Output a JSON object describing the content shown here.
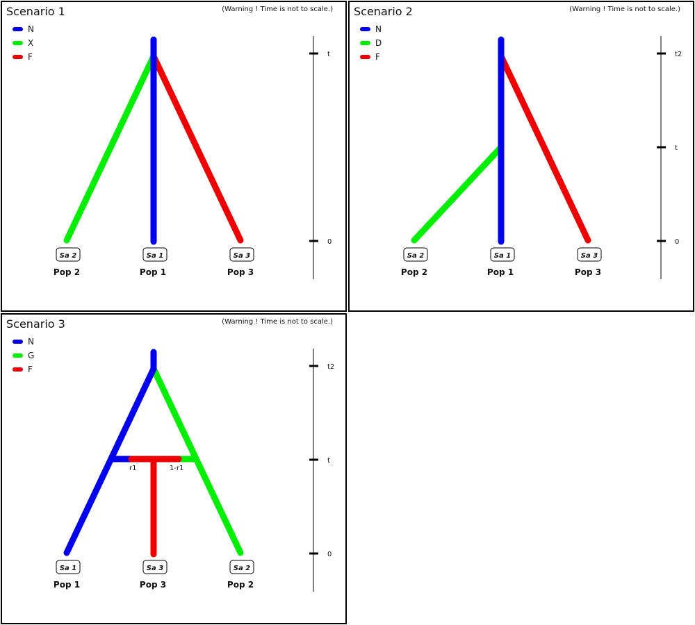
{
  "warning": "(Warning ! Time is not to scale.)",
  "colors": {
    "N": "#0000ee",
    "green": "#00ee00",
    "F": "#ee0000"
  },
  "scenarios": [
    {
      "title": "Scenario 1",
      "legend": [
        "N",
        "X",
        "F"
      ],
      "ticks": [
        "t",
        "0"
      ],
      "samples": [
        "Sa 2",
        "Sa 1",
        "Sa 3"
      ],
      "pops": [
        "Pop 2",
        "Pop 1",
        "Pop 3"
      ]
    },
    {
      "title": "Scenario 2",
      "legend": [
        "N",
        "D",
        "F"
      ],
      "ticks": [
        "t2",
        "t",
        "0"
      ],
      "samples": [
        "Sa 2",
        "Sa 1",
        "Sa 3"
      ],
      "pops": [
        "Pop 2",
        "Pop 1",
        "Pop 3"
      ]
    },
    {
      "title": "Scenario 3",
      "legend": [
        "N",
        "G",
        "F"
      ],
      "ticks": [
        "t2",
        "t",
        "0"
      ],
      "samples": [
        "Sa 1",
        "Sa 3",
        "Sa 2"
      ],
      "pops": [
        "Pop 1",
        "Pop 3",
        "Pop 2"
      ],
      "admix": [
        "r1",
        "1-r1"
      ]
    }
  ]
}
